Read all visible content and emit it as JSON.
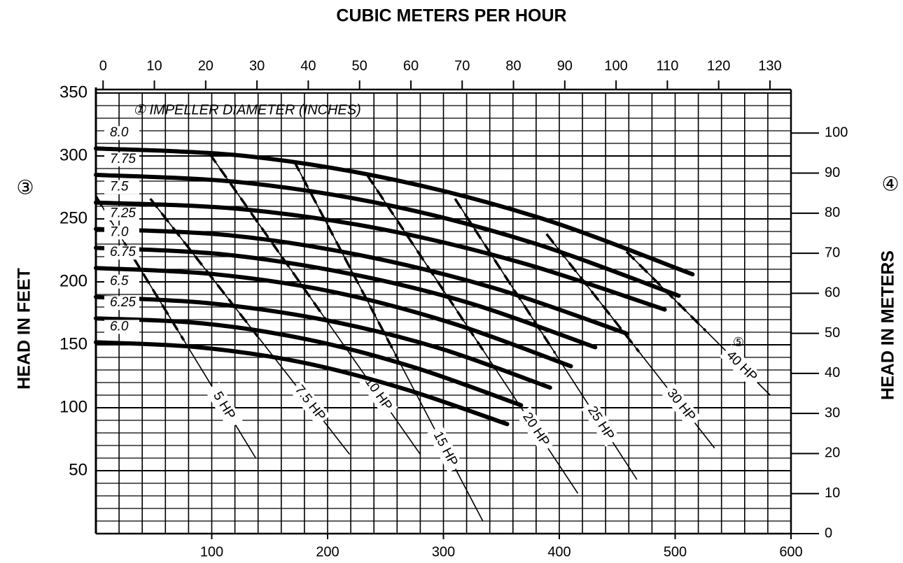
{
  "chart_data": {
    "type": "line",
    "title": "CUBIC METERS PER HOUR",
    "ylabel": "HEAD IN FEET",
    "ylabel_marker": "③",
    "y2label": "HEAD IN METERS",
    "y2label_marker": "④",
    "annotation": "① IMPELLER DIAMETER (INCHES)",
    "power_marker": "⑤",
    "xlim": [
      0,
      600
    ],
    "xticks": [
      100,
      200,
      300,
      400,
      500,
      600
    ],
    "x2lim": [
      -1.4,
      134.1
    ],
    "x2ticks": [
      0,
      10,
      20,
      30,
      40,
      50,
      60,
      70,
      80,
      90,
      100,
      110,
      120,
      130
    ],
    "ylim": [
      0,
      350
    ],
    "yticks": [
      50,
      100,
      150,
      200,
      250,
      300,
      350
    ],
    "y2lim": [
      0,
      110
    ],
    "y2ticks": [
      0,
      10,
      20,
      30,
      40,
      50,
      60,
      70,
      80,
      90,
      100
    ],
    "grid": true,
    "series": [
      {
        "name": "8.0",
        "color": "#000000",
        "x": [
          0,
          129,
          258,
          386,
          515
        ],
        "values": [
          306,
          300,
          281,
          250,
          206
        ]
      },
      {
        "name": "7.75",
        "color": "#000000",
        "x": [
          0,
          126,
          252,
          377,
          503
        ],
        "values": [
          285,
          279,
          261,
          231,
          189
        ]
      },
      {
        "name": "7.5",
        "color": "#000000",
        "x": [
          0,
          123,
          246,
          368,
          491
        ],
        "values": [
          263,
          258,
          242,
          215,
          178
        ]
      },
      {
        "name": "7.25",
        "color": "#000000",
        "x": [
          0,
          115,
          229,
          344,
          458
        ],
        "values": [
          242,
          237,
          221,
          195,
          159
        ]
      },
      {
        "name": "7.0",
        "color": "#000000",
        "x": [
          0,
          108,
          216,
          323,
          431
        ],
        "values": [
          227,
          222,
          207,
          183,
          148
        ]
      },
      {
        "name": "6.75",
        "color": "#000000",
        "x": [
          0,
          103,
          205,
          308,
          410
        ],
        "values": [
          211,
          206,
          192,
          167,
          133
        ]
      },
      {
        "name": "6.5",
        "color": "#000000",
        "x": [
          0,
          98,
          196,
          294,
          392
        ],
        "values": [
          188,
          183,
          170,
          148,
          116
        ]
      },
      {
        "name": "6.25",
        "color": "#000000",
        "x": [
          0,
          92,
          184,
          275,
          367
        ],
        "values": [
          171,
          167,
          154,
          132,
          102
        ]
      },
      {
        "name": "6.0",
        "color": "#000000",
        "x": [
          0,
          89,
          178,
          266,
          355
        ],
        "values": [
          152,
          148,
          136,
          115,
          87
        ]
      }
    ],
    "power_lines": [
      {
        "name": "5 HP",
        "x": [
          0,
          138
        ],
        "values": [
          268,
          60
        ]
      },
      {
        "name": "7.5 HP",
        "x": [
          47,
          219
        ],
        "values": [
          266,
          63
        ]
      },
      {
        "name": "10 HP",
        "x": [
          98,
          280
        ],
        "values": [
          302,
          63
        ]
      },
      {
        "name": "15 HP",
        "x": [
          171,
          334
        ],
        "values": [
          296,
          10
        ]
      },
      {
        "name": "20 HP",
        "x": [
          234,
          416
        ],
        "values": [
          285,
          32
        ]
      },
      {
        "name": "25 HP",
        "x": [
          310,
          467
        ],
        "values": [
          266,
          43
        ]
      },
      {
        "name": "30 HP",
        "x": [
          389,
          534
        ],
        "values": [
          238,
          68
        ]
      },
      {
        "name": "40 HP",
        "x": [
          458,
          582
        ],
        "values": [
          224,
          110
        ]
      }
    ]
  }
}
